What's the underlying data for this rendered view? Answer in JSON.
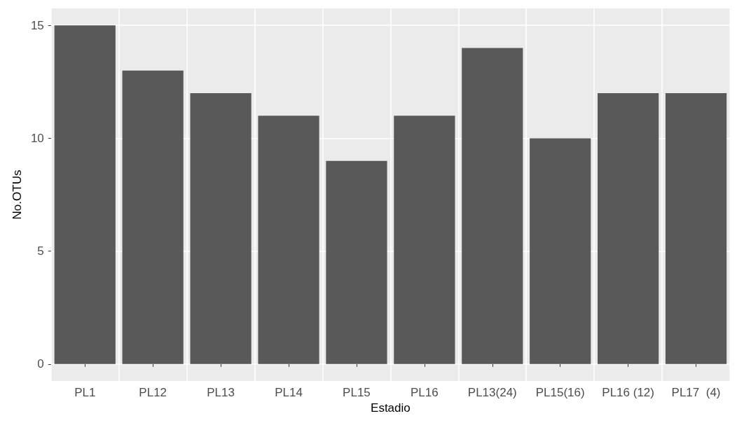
{
  "chart_data": {
    "type": "bar",
    "xlabel": "Estadio",
    "ylabel": "No.OTUs",
    "categories": [
      "PL1",
      "PL12",
      "PL13",
      "PL14",
      "PL15",
      "PL16",
      "PL13(24)",
      "PL15(16)",
      "PL16 (12)",
      "PL17  (4)"
    ],
    "values": [
      15,
      13,
      12,
      11,
      9,
      11,
      14,
      10,
      12,
      12
    ],
    "color": "#595959",
    "ylim": [
      -0.75,
      15.75
    ],
    "yticks": [
      0,
      5,
      10,
      15
    ],
    "grid": true
  }
}
